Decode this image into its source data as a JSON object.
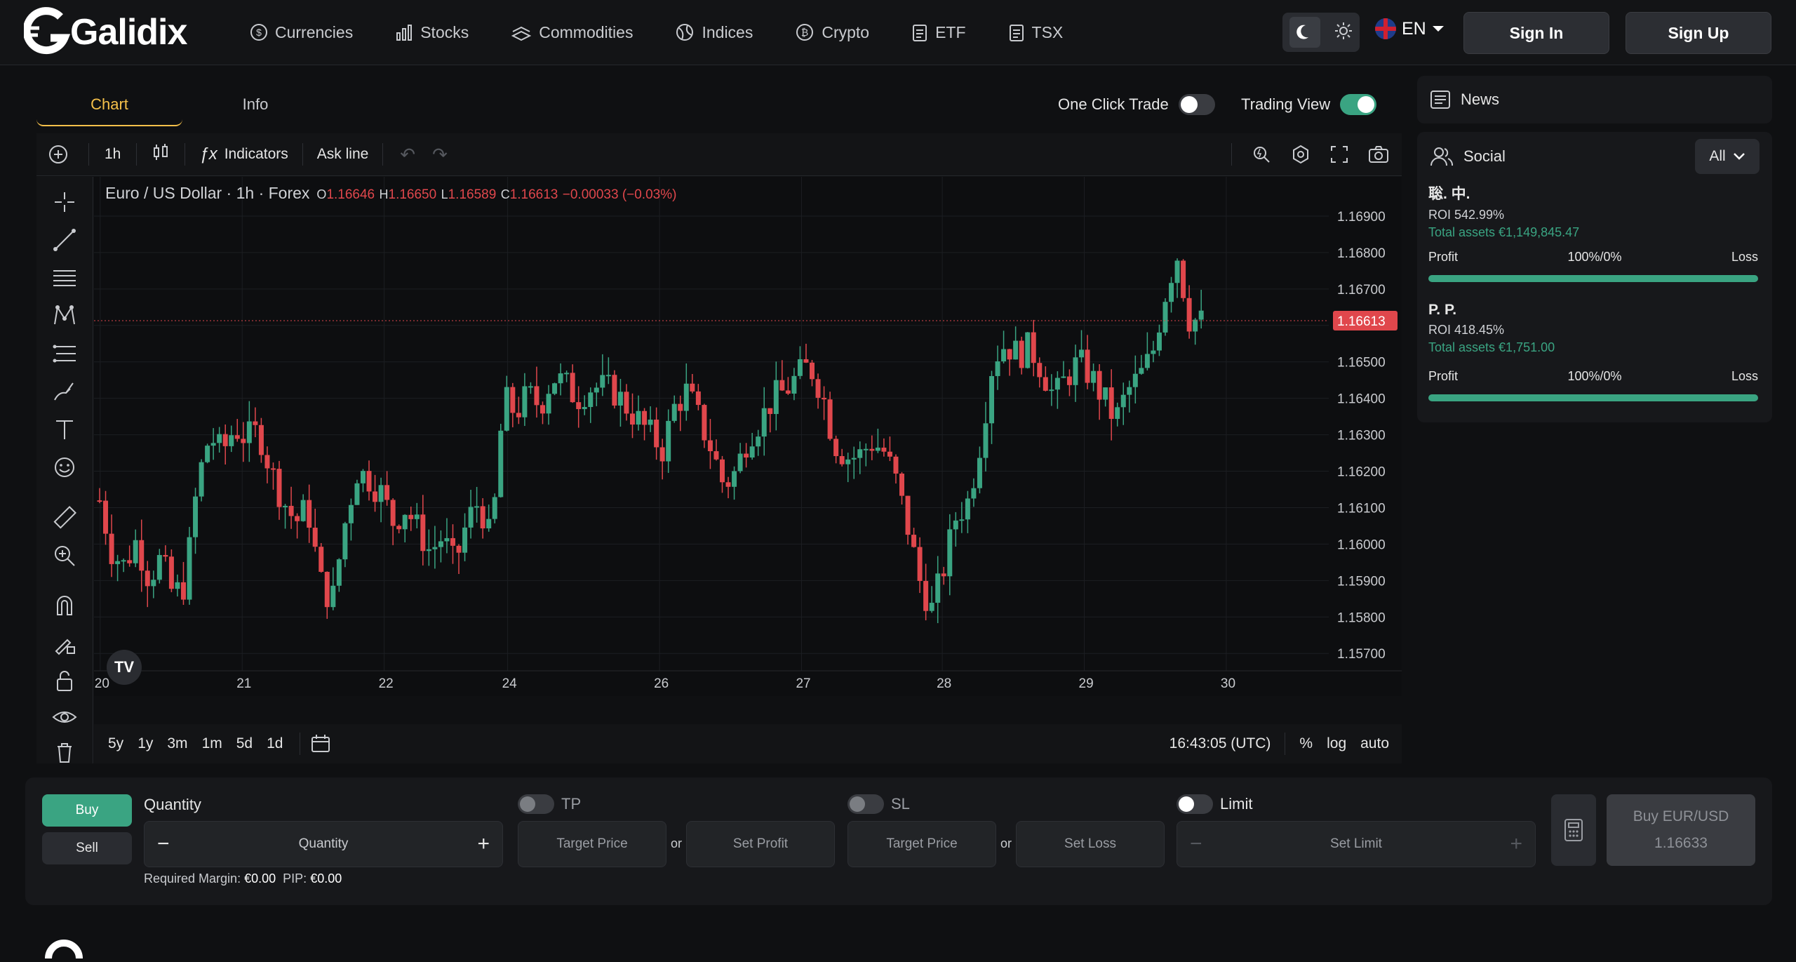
{
  "brand": {
    "name": "Galidix"
  },
  "nav": [
    {
      "label": "Currencies",
      "icon": "dollar-coin-icon"
    },
    {
      "label": "Stocks",
      "icon": "bar-chart-icon"
    },
    {
      "label": "Commodities",
      "icon": "stack-icon"
    },
    {
      "label": "Indices",
      "icon": "globe-icon"
    },
    {
      "label": "Crypto",
      "icon": "bitcoin-icon"
    },
    {
      "label": "ETF",
      "icon": "clipboard-icon"
    },
    {
      "label": "TSX",
      "icon": "clipboard-icon"
    }
  ],
  "header": {
    "lang": "EN",
    "sign_in": "Sign In",
    "sign_up": "Sign Up"
  },
  "tabs": {
    "chart": "Chart",
    "info": "Info"
  },
  "toggles": {
    "one_click": "One Click Trade",
    "trading_view": "Trading View",
    "one_click_on": false,
    "trading_view_on": true
  },
  "toolbar": {
    "interval": "1h",
    "indicators": "Indicators",
    "ask_line": "Ask line"
  },
  "legend": {
    "symbol": "Euro / US Dollar · 1h · Forex",
    "o_label": "O",
    "o_value": "1.16646",
    "h_label": "H",
    "h_value": "1.16650",
    "l_label": "L",
    "l_value": "1.16589",
    "c_label": "C",
    "c_value": "1.16613",
    "change": "−0.00033 (−0.03%)"
  },
  "chart_data": {
    "type": "candlestick",
    "title": "Euro / US Dollar · 1h · Forex",
    "x_ticks": [
      "20",
      "21",
      "22",
      "24",
      "26",
      "27",
      "28",
      "29",
      "30"
    ],
    "y_ticks": [
      "1.16900",
      "1.16800",
      "1.16700",
      "1.16600",
      "1.16500",
      "1.16400",
      "1.16300",
      "1.16200",
      "1.16100",
      "1.16000",
      "1.15900",
      "1.15800",
      "1.15700"
    ],
    "ylim": [
      1.1566,
      1.1695
    ],
    "current_price": "1.16613",
    "close_path": [
      1.1612,
      1.1598,
      1.1594,
      1.1601,
      1.1591,
      1.1596,
      1.1586,
      1.1589,
      1.1617,
      1.163,
      1.1625,
      1.1632,
      1.1629,
      1.1631,
      1.162,
      1.1612,
      1.1606,
      1.161,
      1.159,
      1.1584,
      1.1605,
      1.162,
      1.1618,
      1.1614,
      1.1606,
      1.161,
      1.1604,
      1.1598,
      1.1602,
      1.1594,
      1.1606,
      1.1612,
      1.16,
      1.164,
      1.1636,
      1.1641,
      1.1638,
      1.1646,
      1.1644,
      1.164,
      1.1643,
      1.1643,
      1.1642,
      1.1638,
      1.1634,
      1.163,
      1.1626,
      1.1638,
      1.1642,
      1.1634,
      1.1626,
      1.1616,
      1.162,
      1.163,
      1.1634,
      1.164,
      1.1642,
      1.1646,
      1.1649,
      1.1642,
      1.1628,
      1.1624,
      1.1624,
      1.1628,
      1.1626,
      1.1618,
      1.1605,
      1.159,
      1.1582,
      1.1594,
      1.1608,
      1.1612,
      1.1629,
      1.1651,
      1.1655,
      1.1652,
      1.1654,
      1.1648,
      1.164,
      1.1646,
      1.165,
      1.1646,
      1.164,
      1.1634,
      1.1642,
      1.1646,
      1.1652,
      1.1668,
      1.168,
      1.1662,
      1.1661
    ]
  },
  "time_controls": {
    "ranges": [
      "5y",
      "1y",
      "3m",
      "1m",
      "5d",
      "1d"
    ],
    "clock": "16:43:05 (UTC)",
    "percent": "%",
    "log": "log",
    "auto": "auto"
  },
  "news": {
    "title": "News"
  },
  "social": {
    "title": "Social",
    "filter": "All",
    "profit_label": "Profit",
    "loss_label": "Loss",
    "users": [
      {
        "name": "聡. 中.",
        "roi": "ROI 542.99%",
        "assets": "Total assets €1,149,845.47",
        "ratio": "100%/0%",
        "profit_share": 1.0
      },
      {
        "name": "P. P.",
        "roi": "ROI 418.45%",
        "assets": "Total assets €1,751.00",
        "ratio": "100%/0%",
        "profit_share": 1.0
      }
    ]
  },
  "trade": {
    "buy": "Buy",
    "sell": "Sell",
    "quantity_label": "Quantity",
    "quantity_placeholder": "Quantity",
    "tp_label": "TP",
    "tp_target": "Target Price",
    "tp_profit": "Set Profit",
    "sl_label": "SL",
    "sl_target": "Target Price",
    "sl_loss": "Set Loss",
    "limit_label": "Limit",
    "limit_placeholder": "Set Limit",
    "or": "or",
    "required_margin_label": "Required Margin:",
    "required_margin": "€0.00",
    "pip_label": "PIP:",
    "pip": "€0.00",
    "buy_btn_line1": "Buy EUR/USD",
    "buy_btn_line2": "1.16633"
  },
  "colors": {
    "accent": "#3aa482",
    "down": "#e0474c",
    "up": "#3aa482",
    "tab_active": "#f5c04a"
  }
}
